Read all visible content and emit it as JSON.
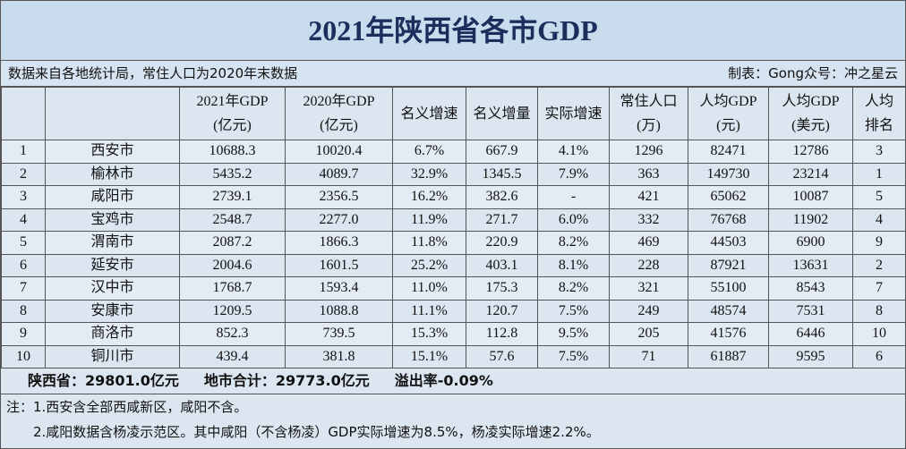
{
  "title": "2021年陕西省各市GDP",
  "source": "数据来自各地统计局，常住人口为2020年末数据",
  "credit": "制表：Gong众号：冲之星云",
  "table": {
    "headers": [
      [
        "2021年GDP",
        "(亿元)"
      ],
      [
        "2020年GDP",
        "(亿元)"
      ],
      [
        "名义增速"
      ],
      [
        "名义增量"
      ],
      [
        "实际增速"
      ],
      [
        "常住人口",
        "(万)"
      ],
      [
        "人均GDP",
        "(元)"
      ],
      [
        "人均GDP",
        "(美元)"
      ],
      [
        "人均",
        "排名"
      ]
    ],
    "rows": [
      [
        "1",
        "西安市",
        "10688.3",
        "10020.4",
        "6.7%",
        "667.9",
        "4.1%",
        "1296",
        "82471",
        "12786",
        "3"
      ],
      [
        "2",
        "榆林市",
        "5435.2",
        "4089.7",
        "32.9%",
        "1345.5",
        "7.9%",
        "363",
        "149730",
        "23214",
        "1"
      ],
      [
        "3",
        "咸阳市",
        "2739.1",
        "2356.5",
        "16.2%",
        "382.6",
        "-",
        "421",
        "65062",
        "10087",
        "5"
      ],
      [
        "4",
        "宝鸡市",
        "2548.7",
        "2277.0",
        "11.9%",
        "271.7",
        "6.0%",
        "332",
        "76768",
        "11902",
        "4"
      ],
      [
        "5",
        "渭南市",
        "2087.2",
        "1866.3",
        "11.8%",
        "220.9",
        "8.2%",
        "469",
        "44503",
        "6900",
        "9"
      ],
      [
        "6",
        "延安市",
        "2004.6",
        "1601.5",
        "25.2%",
        "403.1",
        "8.1%",
        "228",
        "87921",
        "13631",
        "2"
      ],
      [
        "7",
        "汉中市",
        "1768.7",
        "1593.4",
        "11.0%",
        "175.3",
        "8.2%",
        "321",
        "55100",
        "8543",
        "7"
      ],
      [
        "8",
        "安康市",
        "1209.5",
        "1088.8",
        "11.1%",
        "120.7",
        "7.5%",
        "249",
        "48574",
        "7531",
        "8"
      ],
      [
        "9",
        "商洛市",
        "852.3",
        "739.5",
        "15.3%",
        "112.8",
        "9.5%",
        "205",
        "41576",
        "6446",
        "10"
      ],
      [
        "10",
        "铜川市",
        "439.4",
        "381.8",
        "15.1%",
        "57.6",
        "7.5%",
        "71",
        "61887",
        "9595",
        "6"
      ]
    ]
  },
  "summary": [
    "陕西省：29801.0亿元",
    "地市合计：29773.0亿元",
    "溢出率-0.09%"
  ],
  "notes": [
    "注：1.西安含全部西咸新区，咸阳不含。",
    "2.咸阳数据含杨凌示范区。其中咸阳（不含杨凌）GDP实际增速为8.5%，杨凌实际增速2.2%。"
  ]
}
